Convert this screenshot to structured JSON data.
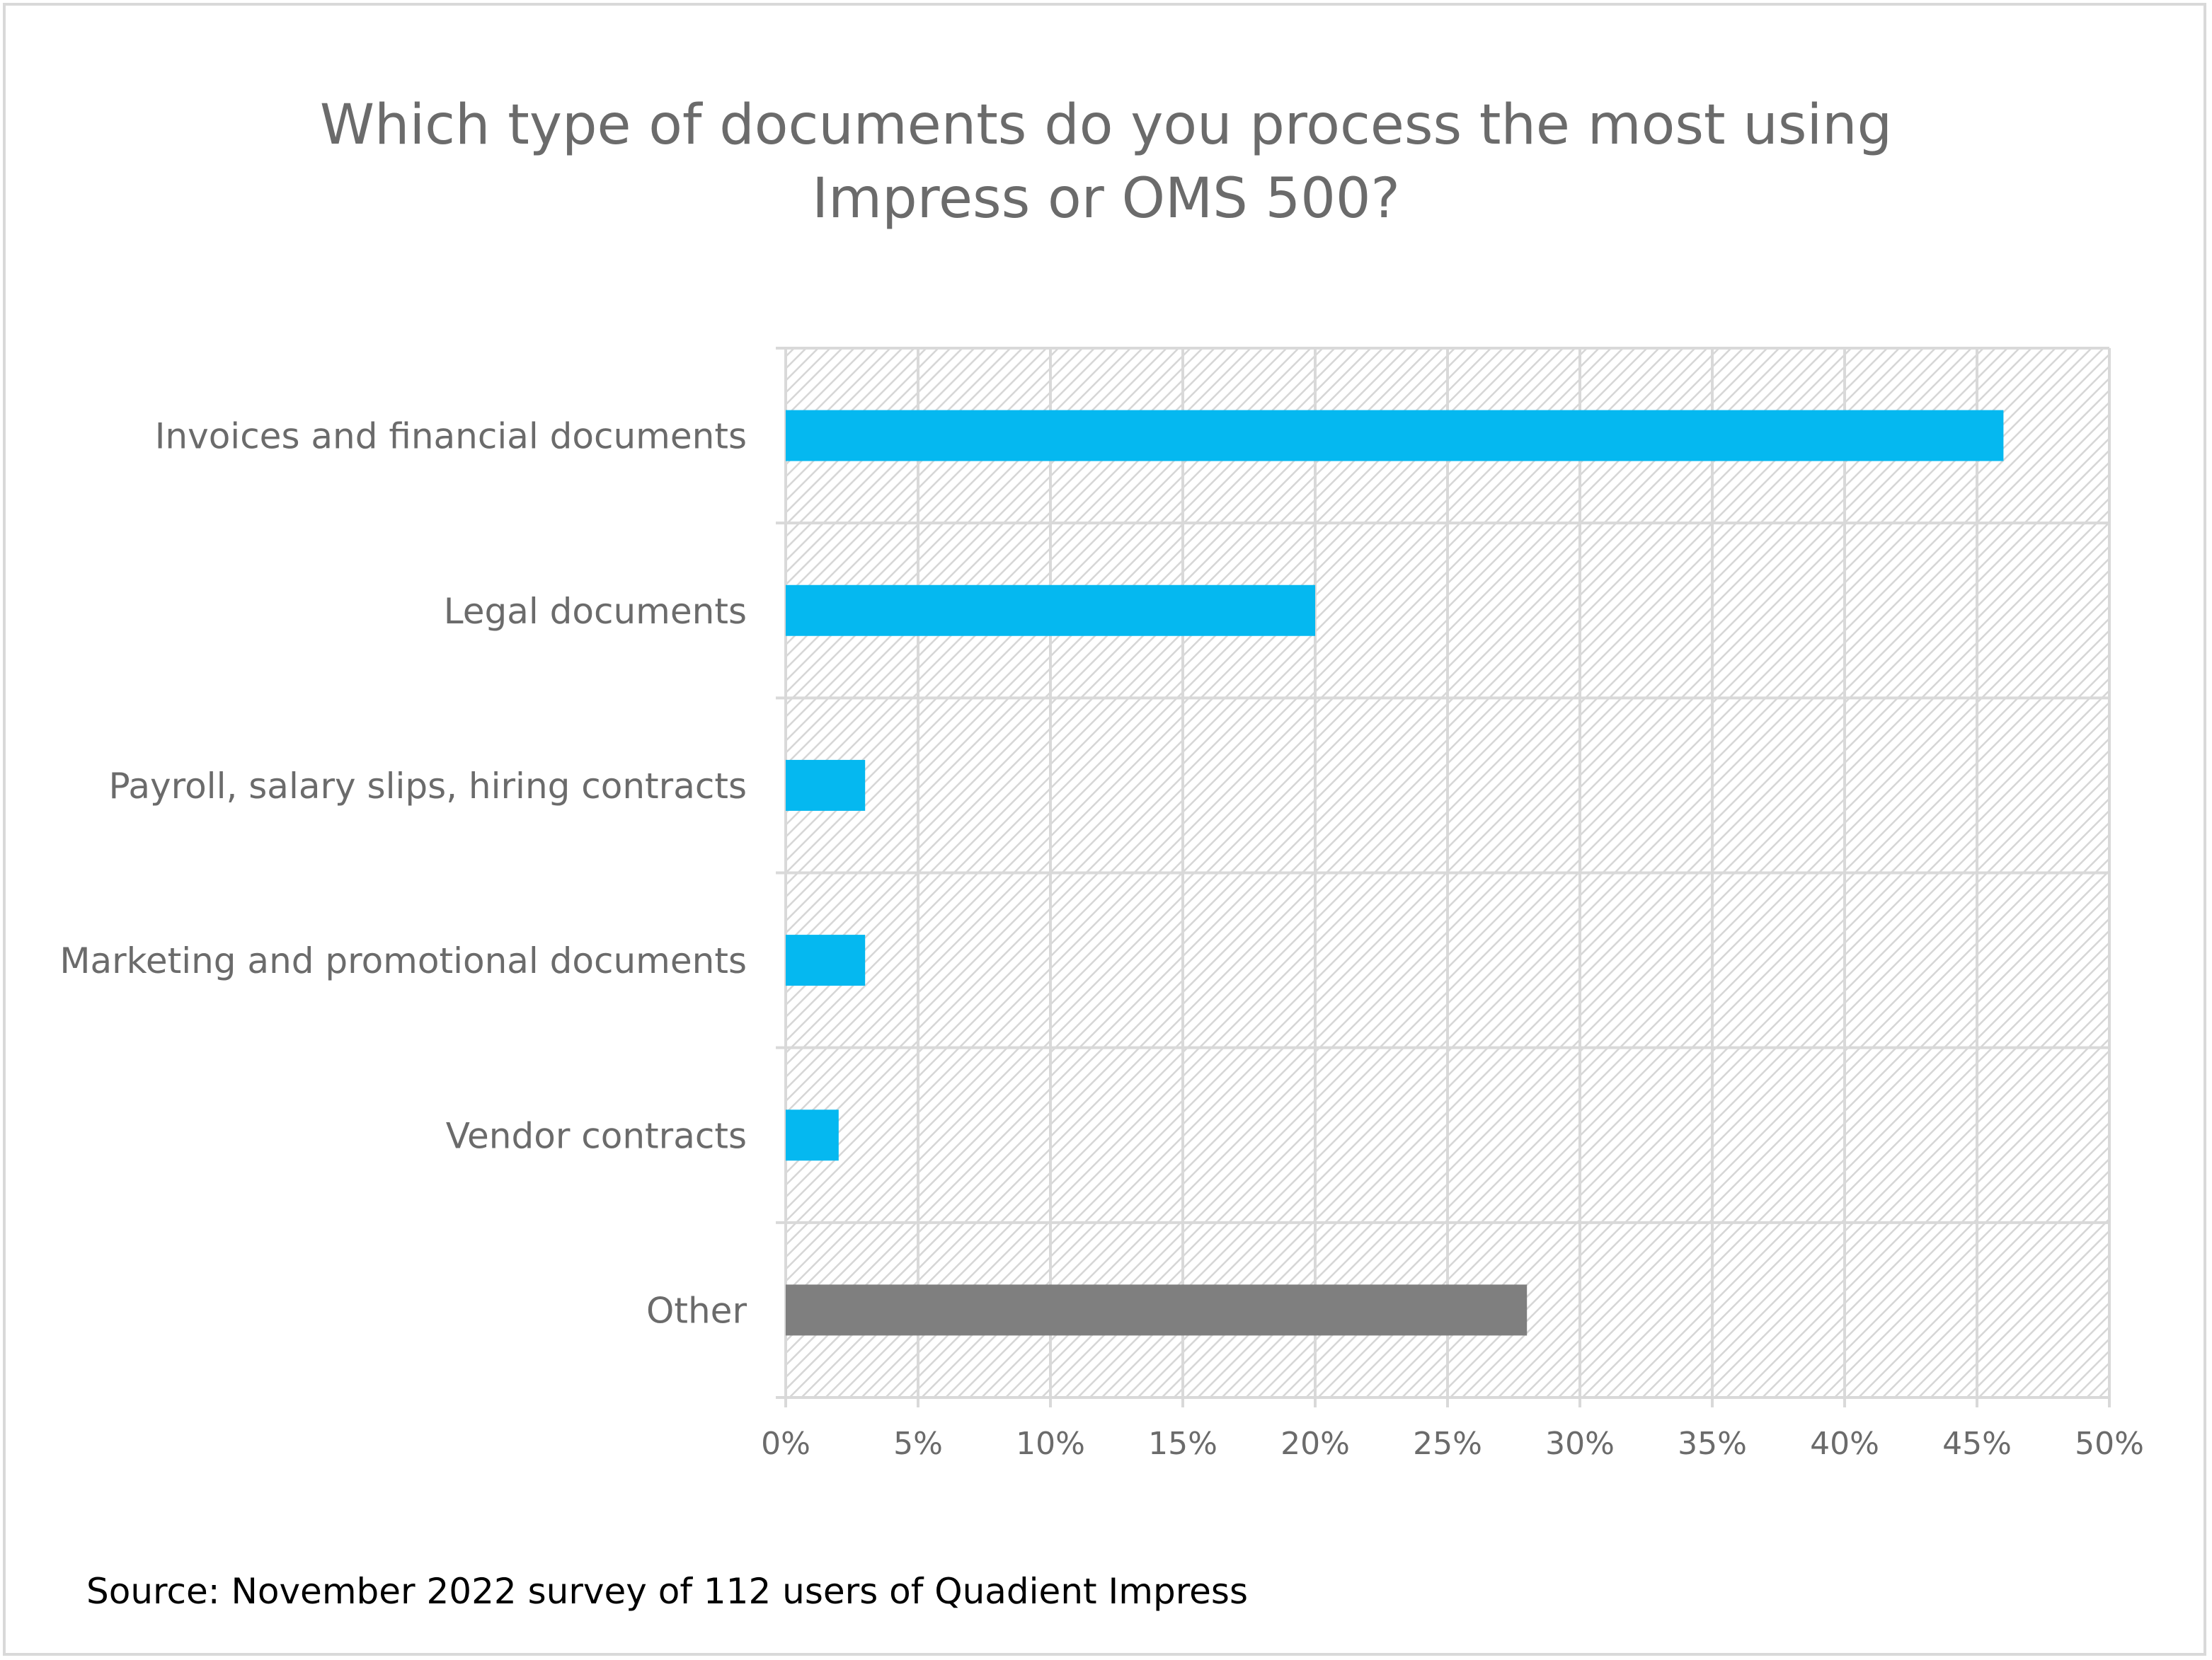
{
  "chart_data": {
    "type": "bar",
    "orientation": "horizontal",
    "title": "Which type of documents do you process the most using Impress or OMS 500?",
    "title_lines": [
      "Which type of documents do you process the most using",
      "Impress or OMS 500?"
    ],
    "categories": [
      "Invoices and financial documents",
      "Legal documents",
      "Payroll, salary slips, hiring contracts",
      "Marketing and promotional documents",
      "Vendor contracts",
      "Other"
    ],
    "values": [
      46,
      20,
      3,
      3,
      2,
      28
    ],
    "unit": "%",
    "colors": [
      "#05b8f0",
      "#05b8f0",
      "#05b8f0",
      "#05b8f0",
      "#05b8f0",
      "#7f7f7f"
    ],
    "xlim": [
      0,
      50
    ],
    "xticks": [
      0,
      5,
      10,
      15,
      20,
      25,
      30,
      35,
      40,
      45,
      50
    ],
    "xtick_labels": [
      "0%",
      "5%",
      "10%",
      "15%",
      "20%",
      "25%",
      "30%",
      "35%",
      "40%",
      "45%",
      "50%"
    ],
    "grid": true,
    "background": "diagonal hatch",
    "xlabel": "",
    "ylabel": ""
  },
  "footer": {
    "source": "Source: November 2022 survey of 112 users of Quadient Impress"
  }
}
